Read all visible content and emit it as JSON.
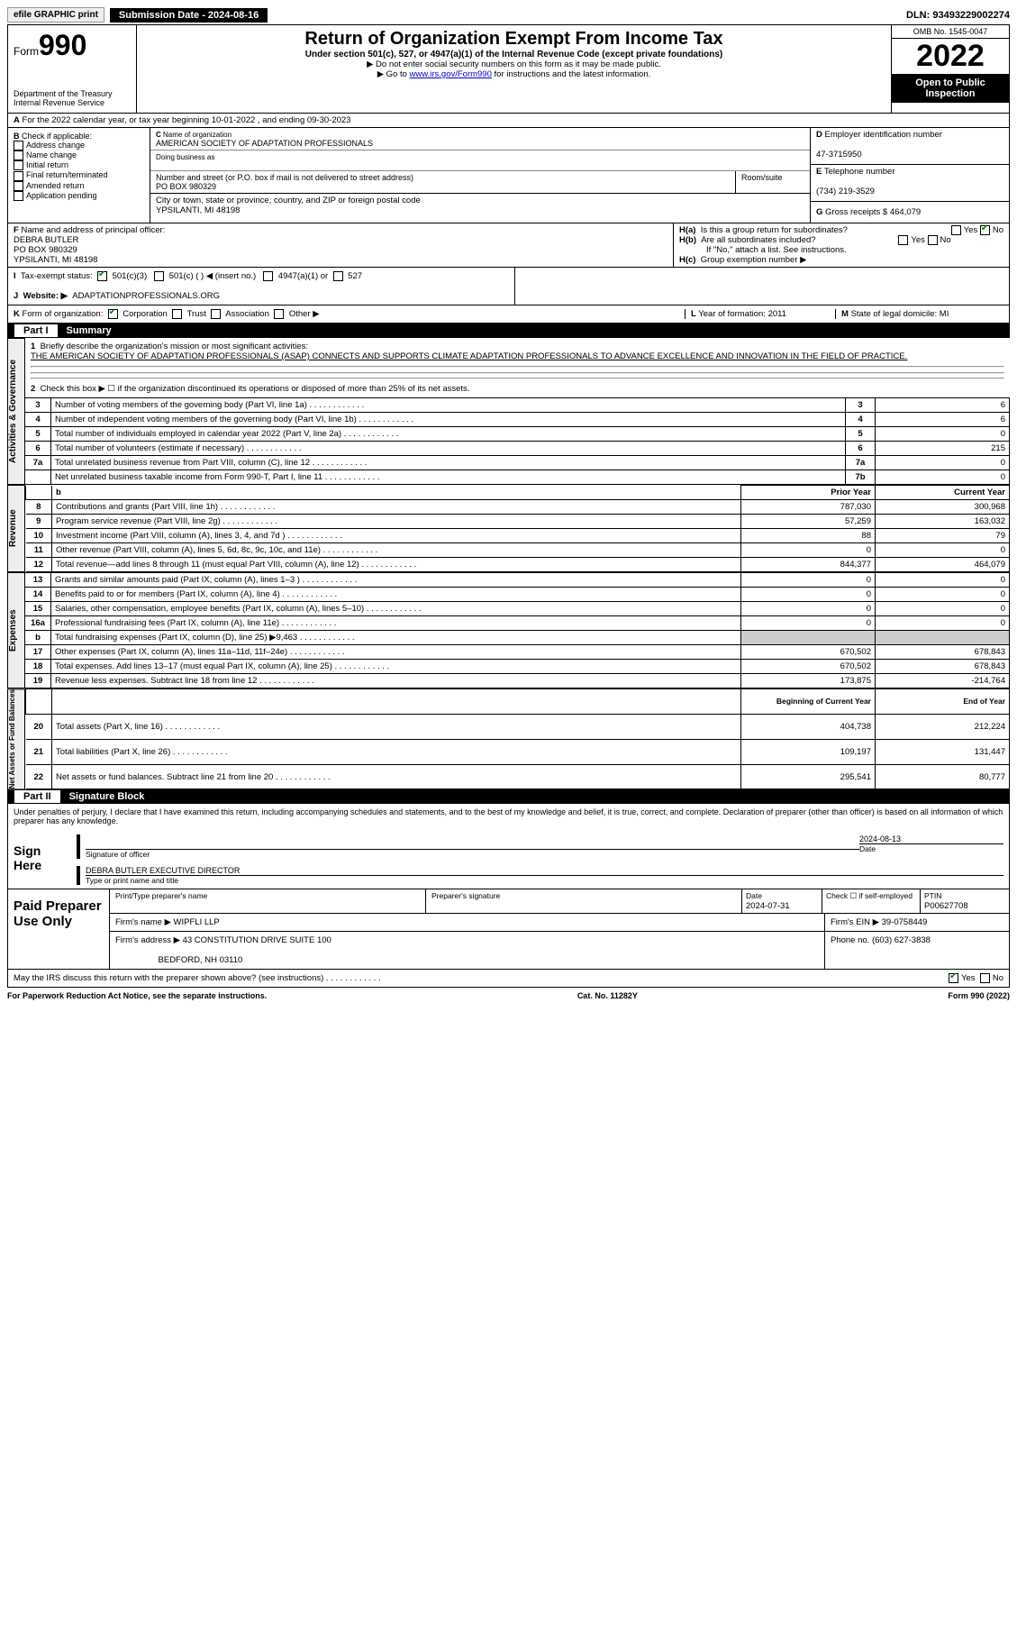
{
  "topbar": {
    "efile": "efile GRAPHIC print",
    "submission": "Submission Date - 2024-08-16",
    "dln": "DLN: 93493229002274"
  },
  "header": {
    "form_prefix": "Form",
    "form_number": "990",
    "dept": "Department of the Treasury Internal Revenue Service",
    "title": "Return of Organization Exempt From Income Tax",
    "subtitle": "Under section 501(c), 527, or 4947(a)(1) of the Internal Revenue Code (except private foundations)",
    "note1": "▶ Do not enter social security numbers on this form as it may be made public.",
    "note2_pre": "▶ Go to ",
    "note2_link": "www.irs.gov/Form990",
    "note2_post": " for instructions and the latest information.",
    "omb": "OMB No. 1545-0047",
    "year": "2022",
    "inspection": "Open to Public Inspection"
  },
  "sectionA": {
    "period": "For the 2022 calendar year, or tax year beginning 10-01-2022    , and ending 09-30-2023",
    "B_label": "Check if applicable:",
    "B_options": [
      "Address change",
      "Name change",
      "Initial return",
      "Final return/terminated",
      "Amended return",
      "Application pending"
    ],
    "C_label": "Name of organization",
    "C_name": "AMERICAN SOCIETY OF ADAPTATION PROFESSIONALS",
    "dba_label": "Doing business as",
    "street_label": "Number and street (or P.O. box if mail is not delivered to street address)",
    "street": "PO BOX 980329",
    "room_label": "Room/suite",
    "city_label": "City or town, state or province, country, and ZIP or foreign postal code",
    "city": "YPSILANTI, MI  48198",
    "D_label": "Employer identification number",
    "D_value": "47-3715950",
    "E_label": "Telephone number",
    "E_value": "(734) 219-3529",
    "G_label": "Gross receipts $",
    "G_value": "464,079",
    "F_label": "Name and address of principal officer:",
    "F_name": "DEBRA BUTLER",
    "F_addr1": "PO BOX 980329",
    "F_addr2": "YPSILANTI, MI  48198",
    "Ha_label": "Is this a group return for subordinates?",
    "Hb_label": "Are all subordinates included?",
    "H_note": "If \"No,\" attach a list. See instructions.",
    "Hc_label": "Group exemption number ▶",
    "yes": "Yes",
    "no": "No",
    "I_label": "Tax-exempt status:",
    "I_501c3": "501(c)(3)",
    "I_501c": "501(c) (  ) ◀ (insert no.)",
    "I_4947": "4947(a)(1) or",
    "I_527": "527",
    "J_label": "Website: ▶",
    "J_value": "ADAPTATIONPROFESSIONALS.ORG",
    "K_label": "Form of organization:",
    "K_corp": "Corporation",
    "K_trust": "Trust",
    "K_assoc": "Association",
    "K_other": "Other ▶",
    "L_label": "Year of formation:",
    "L_value": "2011",
    "M_label": "State of legal domicile:",
    "M_value": "MI"
  },
  "partI": {
    "header_num": "Part I",
    "header_title": "Summary",
    "line1_label": "Briefly describe the organization's mission or most significant activities:",
    "line1_text": "THE AMERICAN SOCIETY OF ADAPTATION PROFESSIONALS (ASAP) CONNECTS AND SUPPORTS CLIMATE ADAPTATION PROFESSIONALS TO ADVANCE EXCELLENCE AND INNOVATION IN THE FIELD OF PRACTICE.",
    "line2": "Check this box ▶ ☐ if the organization discontinued its operations or disposed of more than 25% of its net assets.",
    "group_act": "Activities & Governance",
    "group_rev": "Revenue",
    "group_exp": "Expenses",
    "group_net": "Net Assets or Fund Balances",
    "col_prior": "Prior Year",
    "col_curr": "Current Year",
    "col_beg": "Beginning of Current Year",
    "col_end": "End of Year",
    "rows_act": [
      {
        "n": "3",
        "d": "Number of voting members of the governing body (Part VI, line 1a)",
        "c": "3",
        "v": "6"
      },
      {
        "n": "4",
        "d": "Number of independent voting members of the governing body (Part VI, line 1b)",
        "c": "4",
        "v": "6"
      },
      {
        "n": "5",
        "d": "Total number of individuals employed in calendar year 2022 (Part V, line 2a)",
        "c": "5",
        "v": "0"
      },
      {
        "n": "6",
        "d": "Total number of volunteers (estimate if necessary)",
        "c": "6",
        "v": "215"
      },
      {
        "n": "7a",
        "d": "Total unrelated business revenue from Part VIII, column (C), line 12",
        "c": "7a",
        "v": "0"
      },
      {
        "n": "",
        "d": "Net unrelated business taxable income from Form 990-T, Part I, line 11",
        "c": "7b",
        "v": "0"
      }
    ],
    "rows_rev": [
      {
        "n": "8",
        "d": "Contributions and grants (Part VIII, line 1h)",
        "p": "787,030",
        "c": "300,968"
      },
      {
        "n": "9",
        "d": "Program service revenue (Part VIII, line 2g)",
        "p": "57,259",
        "c": "163,032"
      },
      {
        "n": "10",
        "d": "Investment income (Part VIII, column (A), lines 3, 4, and 7d )",
        "p": "88",
        "c": "79"
      },
      {
        "n": "11",
        "d": "Other revenue (Part VIII, column (A), lines 5, 6d, 8c, 9c, 10c, and 11e)",
        "p": "0",
        "c": "0"
      },
      {
        "n": "12",
        "d": "Total revenue—add lines 8 through 11 (must equal Part VIII, column (A), line 12)",
        "p": "844,377",
        "c": "464,079"
      }
    ],
    "rows_exp": [
      {
        "n": "13",
        "d": "Grants and similar amounts paid (Part IX, column (A), lines 1–3 )",
        "p": "0",
        "c": "0"
      },
      {
        "n": "14",
        "d": "Benefits paid to or for members (Part IX, column (A), line 4)",
        "p": "0",
        "c": "0"
      },
      {
        "n": "15",
        "d": "Salaries, other compensation, employee benefits (Part IX, column (A), lines 5–10)",
        "p": "0",
        "c": "0"
      },
      {
        "n": "16a",
        "d": "Professional fundraising fees (Part IX, column (A), line 11e)",
        "p": "0",
        "c": "0"
      },
      {
        "n": "b",
        "d": "Total fundraising expenses (Part IX, column (D), line 25) ▶9,463",
        "p": "",
        "c": "",
        "grey": true
      },
      {
        "n": "17",
        "d": "Other expenses (Part IX, column (A), lines 11a–11d, 11f–24e)",
        "p": "670,502",
        "c": "678,843"
      },
      {
        "n": "18",
        "d": "Total expenses. Add lines 13–17 (must equal Part IX, column (A), line 25)",
        "p": "670,502",
        "c": "678,843"
      },
      {
        "n": "19",
        "d": "Revenue less expenses. Subtract line 18 from line 12",
        "p": "173,875",
        "c": "-214,764"
      }
    ],
    "rows_net": [
      {
        "n": "20",
        "d": "Total assets (Part X, line 16)",
        "p": "404,738",
        "c": "212,224"
      },
      {
        "n": "21",
        "d": "Total liabilities (Part X, line 26)",
        "p": "109,197",
        "c": "131,447"
      },
      {
        "n": "22",
        "d": "Net assets or fund balances. Subtract line 21 from line 20",
        "p": "295,541",
        "c": "80,777"
      }
    ]
  },
  "partII": {
    "header_num": "Part II",
    "header_title": "Signature Block",
    "declaration": "Under penalties of perjury, I declare that I have examined this return, including accompanying schedules and statements, and to the best of my knowledge and belief, it is true, correct, and complete. Declaration of preparer (other than officer) is based on all information of which preparer has any knowledge.",
    "sign_here": "Sign Here",
    "sig_officer": "Signature of officer",
    "sig_date": "2024-08-13",
    "date_label": "Date",
    "officer_name": "DEBRA BUTLER  EXECUTIVE DIRECTOR",
    "officer_name_label": "Type or print name and title",
    "paid_preparer": "Paid Preparer Use Only",
    "prep_name_label": "Print/Type preparer's name",
    "prep_sig_label": "Preparer's signature",
    "prep_date_label": "Date",
    "prep_date": "2024-07-31",
    "self_emp": "Check ☐ if self-employed",
    "ptin_label": "PTIN",
    "ptin": "P00627708",
    "firm_name_label": "Firm's name    ▶",
    "firm_name": "WIPFLI LLP",
    "firm_ein_label": "Firm's EIN ▶",
    "firm_ein": "39-0758449",
    "firm_addr_label": "Firm's address ▶",
    "firm_addr1": "43 CONSTITUTION DRIVE SUITE 100",
    "firm_addr2": "BEDFORD, NH  03110",
    "firm_phone_label": "Phone no.",
    "firm_phone": "(603) 627-3838",
    "may_irs": "May the IRS discuss this return with the preparer shown above? (see instructions)"
  },
  "footer": {
    "paperwork": "For Paperwork Reduction Act Notice, see the separate instructions.",
    "cat": "Cat. No. 11282Y",
    "form": "Form 990 (2022)"
  }
}
